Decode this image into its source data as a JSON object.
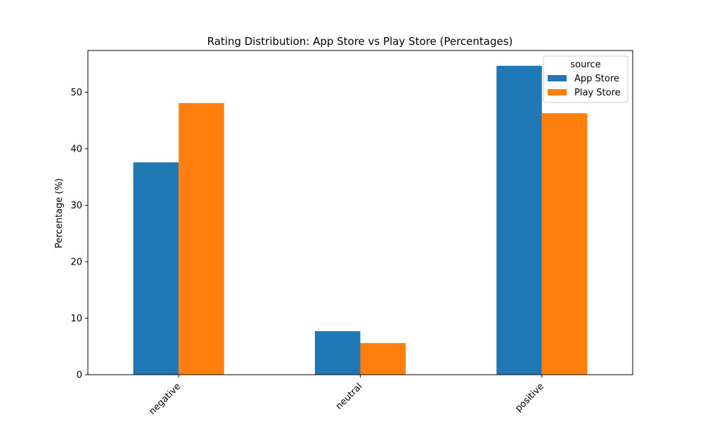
{
  "chart_data": {
    "type": "bar",
    "title": "Rating Distribution: App Store vs Play Store (Percentages)",
    "xlabel": "",
    "ylabel": "Percentage (%)",
    "categories": [
      "negative",
      "neutral",
      "positive"
    ],
    "series": [
      {
        "name": "App Store",
        "values": [
          37.6,
          7.7,
          54.7
        ],
        "color": "#1f77b4"
      },
      {
        "name": "Play Store",
        "values": [
          48.1,
          5.6,
          46.3
        ],
        "color": "#ff7f0e"
      }
    ],
    "ylim": [
      0,
      57.4
    ],
    "yticks": [
      0,
      10,
      20,
      30,
      40,
      50
    ],
    "ytick_labels": [
      "0",
      "10",
      "20",
      "30",
      "40",
      "50"
    ],
    "grid": false,
    "legend": {
      "title": "source",
      "placement": "top-right"
    }
  }
}
